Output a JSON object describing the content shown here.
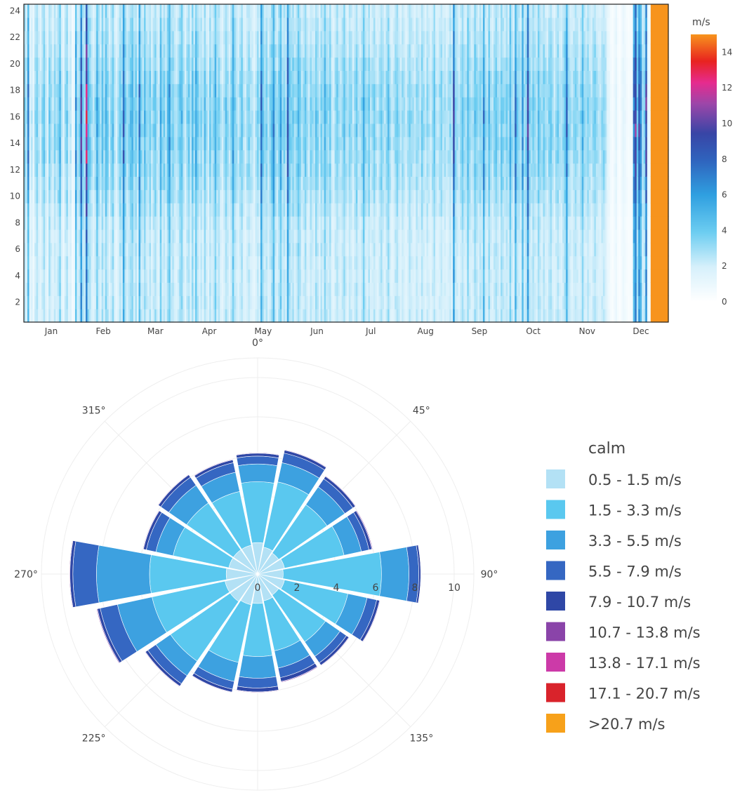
{
  "heatmap": {
    "colorbar_title": "m/s",
    "colorbar_ticks": [
      0,
      2,
      4,
      6,
      8,
      10,
      12,
      14
    ],
    "colorbar_range": [
      0,
      15
    ],
    "colorscale": [
      [
        0.0,
        "#ffffff"
      ],
      [
        0.13,
        "#d6f0fb"
      ],
      [
        0.26,
        "#6ccdf1"
      ],
      [
        0.4,
        "#2f9fe0"
      ],
      [
        0.53,
        "#2f63bd"
      ],
      [
        0.63,
        "#3845a6"
      ],
      [
        0.74,
        "#9c46a9"
      ],
      [
        0.82,
        "#e62b8e"
      ],
      [
        0.9,
        "#e8231f"
      ],
      [
        1.0,
        "#f7941d"
      ]
    ],
    "months": [
      "Jan",
      "Feb",
      "Mar",
      "Apr",
      "May",
      "Jun",
      "Jul",
      "Aug",
      "Sep",
      "Oct",
      "Nov",
      "Dec"
    ],
    "y_ticks": [
      2,
      4,
      6,
      8,
      10,
      12,
      14,
      16,
      18,
      20,
      22,
      24
    ],
    "y_range": [
      0.5,
      24.5
    ],
    "days": 365,
    "hours": 24,
    "daily_mean_speed": [
      3.1,
      2.4,
      5.8,
      1.5,
      2.0,
      1.2,
      2.6,
      3.0,
      2.2,
      1.8,
      2.7,
      3.4,
      2.1,
      1.6,
      3.3,
      2.5,
      1.9,
      2.8,
      2.3,
      3.0,
      4.1,
      2.0,
      1.4,
      2.6,
      3.2,
      1.8,
      2.1,
      0.8,
      1.0,
      5.2,
      2.4,
      2.9,
      7.6,
      3.1,
      2.7,
      9.5,
      3.8,
      3.3,
      2.4,
      1.9,
      2.8,
      4.5,
      3.0,
      2.2,
      3.6,
      2.5,
      4.2,
      3.1,
      2.0,
      2.9,
      3.7,
      2.1,
      1.6,
      2.4,
      3.3,
      2.8,
      6.6,
      3.4,
      2.3,
      2.9,
      3.6,
      4.1,
      2.7,
      3.2,
      2.2,
      5.9,
      3.0,
      2.5,
      3.9,
      2.8,
      2.4,
      3.3,
      2.1,
      2.9,
      3.5,
      2.3,
      2.0,
      4.4,
      2.6,
      3.1,
      2.2,
      3.7,
      5.1,
      2.8,
      3.0,
      2.4,
      2.1,
      2.7,
      3.5,
      4.0,
      2.5,
      1.8,
      2.9,
      3.3,
      2.2,
      3.8,
      2.6,
      4.6,
      3.1,
      2.4,
      2.9,
      2.1,
      3.6,
      2.5,
      1.9,
      3.2,
      2.3,
      2.8,
      4.3,
      2.6,
      3.0,
      2.2,
      1.7,
      2.5,
      3.4,
      2.7,
      2.0,
      2.9,
      4.9,
      3.1,
      2.4,
      2.0,
      2.8,
      3.3,
      2.2,
      1.8,
      2.6,
      3.0,
      2.4,
      2.1,
      1.6,
      2.3,
      2.9,
      2.5,
      6.2,
      3.4,
      2.7,
      3.1,
      2.2,
      2.8,
      3.6,
      5.4,
      2.9,
      2.3,
      3.2,
      4.7,
      2.6,
      3.0,
      2.4,
      6.8,
      3.5,
      2.8,
      3.3,
      2.5,
      2.9,
      4.0,
      3.1,
      2.2,
      2.7,
      3.4,
      2.4,
      2.0,
      3.0,
      2.6,
      2.3,
      3.5,
      2.8,
      2.1,
      3.1,
      2.5,
      4.2,
      2.9,
      2.6,
      3.3,
      2.0,
      1.8,
      2.7,
      3.2,
      2.4,
      2.2,
      2.8,
      3.6,
      2.5,
      2.0,
      3.0,
      2.6,
      1.9,
      2.7,
      3.4,
      2.3,
      2.1,
      2.9,
      4.5,
      2.8,
      2.4,
      3.1,
      2.2,
      2.6,
      3.0,
      2.3,
      2.0,
      2.6,
      3.3,
      2.5,
      2.1,
      2.8,
      3.7,
      2.4,
      1.8,
      2.2,
      2.9,
      3.2,
      2.5,
      2.0,
      2.7,
      2.3,
      1.7,
      2.4,
      3.0,
      2.6,
      2.2,
      1.9,
      2.8,
      2.4,
      2.1,
      3.1,
      2.5,
      2.0,
      2.7,
      2.3,
      1.8,
      2.6,
      3.2,
      2.2,
      2.0,
      2.5,
      2.9,
      2.1,
      2.4,
      1.9,
      2.3,
      2.8,
      2.2,
      7.1,
      3.0,
      2.5,
      2.1,
      2.7,
      3.4,
      2.6,
      2.3,
      4.1,
      2.8,
      2.2,
      2.5,
      3.6,
      2.9,
      2.4,
      3.1,
      2.6,
      5.7,
      2.7,
      2.3,
      3.8,
      2.5,
      2.1,
      2.9,
      3.3,
      2.6,
      2.2,
      3.5,
      2.8,
      2.4,
      3.0,
      2.5,
      4.4,
      2.7,
      2.3,
      6.0,
      3.1,
      2.8,
      2.4,
      5.2,
      2.6,
      3.0,
      7.4,
      2.9,
      2.5,
      3.2,
      2.7,
      2.3,
      3.6,
      2.8,
      2.4,
      3.1,
      2.6,
      2.2,
      2.9,
      3.3,
      2.5,
      2.0,
      2.7,
      3.1,
      2.4,
      2.2,
      2.8,
      3.5,
      6.3,
      2.9,
      2.4,
      2.1,
      2.6,
      3.0,
      2.5,
      2.2,
      2.8,
      4.2,
      2.6,
      2.3,
      2.9,
      2.4,
      2.1,
      2.7,
      3.2,
      2.5,
      2.2,
      2.0,
      2.6,
      2.9,
      2.3,
      1.4,
      1.0,
      0.6,
      0.4,
      0.8,
      1.2,
      0.5,
      0.3,
      0.7,
      1.1,
      0.9,
      0.6,
      0.4,
      0.5,
      0.7,
      6.1,
      8.2,
      3.5,
      7.5,
      5.6,
      2.4,
      3.0,
      7.8,
      1.2,
      0.6
    ],
    "hourly_profile": [
      0.82,
      0.8,
      0.8,
      0.79,
      0.8,
      0.81,
      0.82,
      0.84,
      0.92,
      1.0,
      1.06,
      1.12,
      1.16,
      1.19,
      1.21,
      1.22,
      1.21,
      1.18,
      1.12,
      1.05,
      0.98,
      0.92,
      0.88,
      0.85
    ]
  },
  "windrose": {
    "angle_labels": [
      "0°",
      "45°",
      "90°",
      "135°",
      "180°",
      "225°",
      "270°",
      "315°"
    ],
    "radial_ticks": [
      0,
      2,
      4,
      6,
      8,
      10
    ],
    "radial_range": [
      0,
      11
    ],
    "legend_title": "calm",
    "bin_labels": [
      "0.5 - 1.5 m/s",
      "1.5 - 3.3 m/s",
      "3.3 - 5.5 m/s",
      "5.5 - 7.9 m/s",
      "7.9 - 10.7 m/s",
      "10.7 - 13.8 m/s",
      "13.8 - 17.1 m/s",
      "17.1 - 20.7 m/s",
      ">20.7 m/s"
    ],
    "bin_colors": [
      "#b3e1f5",
      "#5ac8ef",
      "#3da1e0",
      "#3567c2",
      "#2f47a6",
      "#8a44a9",
      "#cc3aa8",
      "#d9232b",
      "#f7a11a"
    ],
    "directions": [
      0,
      22.5,
      45,
      67.5,
      90,
      112.5,
      135,
      157.5,
      180,
      202.5,
      225,
      247.5,
      270,
      292.5,
      315,
      337.5
    ],
    "cumulative_freq": [
      [
        1.6,
        4.7,
        5.6,
        6.0,
        6.15,
        6.18,
        6.19,
        6.2,
        6.2
      ],
      [
        1.4,
        4.8,
        5.8,
        6.3,
        6.45,
        6.48,
        6.49,
        6.5,
        6.5
      ],
      [
        1.3,
        4.3,
        5.4,
        5.9,
        6.05,
        6.08,
        6.09,
        6.1,
        6.1
      ],
      [
        1.4,
        4.5,
        5.4,
        5.8,
        5.95,
        5.99,
        6.0,
        6.0,
        6.0
      ],
      [
        1.3,
        6.3,
        7.7,
        8.2,
        8.3,
        8.32,
        8.33,
        8.33,
        8.33
      ],
      [
        1.4,
        4.7,
        5.7,
        6.2,
        6.35,
        6.38,
        6.39,
        6.4,
        6.4
      ],
      [
        1.3,
        4.2,
        5.1,
        5.5,
        5.65,
        5.68,
        5.69,
        5.7,
        5.7
      ],
      [
        1.4,
        4.0,
        4.9,
        5.4,
        5.6,
        5.64,
        5.65,
        5.65,
        5.65
      ],
      [
        1.5,
        4.2,
        5.3,
        5.8,
        6.0,
        6.03,
        6.04,
        6.05,
        6.05
      ],
      [
        1.6,
        4.6,
        5.6,
        6.0,
        6.15,
        6.18,
        6.19,
        6.2,
        6.2
      ],
      [
        1.7,
        5.4,
        6.3,
        6.8,
        6.95,
        6.98,
        6.99,
        7.0,
        7.0
      ],
      [
        1.7,
        5.5,
        7.3,
        8.2,
        8.35,
        8.39,
        8.4,
        8.4,
        8.4
      ],
      [
        1.6,
        5.5,
        8.2,
        9.4,
        9.55,
        9.58,
        9.59,
        9.6,
        9.6
      ],
      [
        1.5,
        4.4,
        5.3,
        5.8,
        5.95,
        5.98,
        5.99,
        6.0,
        6.0
      ],
      [
        1.5,
        4.4,
        5.5,
        6.0,
        6.15,
        6.18,
        6.19,
        6.2,
        6.2
      ],
      [
        1.5,
        4.3,
        5.3,
        5.8,
        5.95,
        5.98,
        5.99,
        6.0,
        6.0
      ]
    ]
  }
}
